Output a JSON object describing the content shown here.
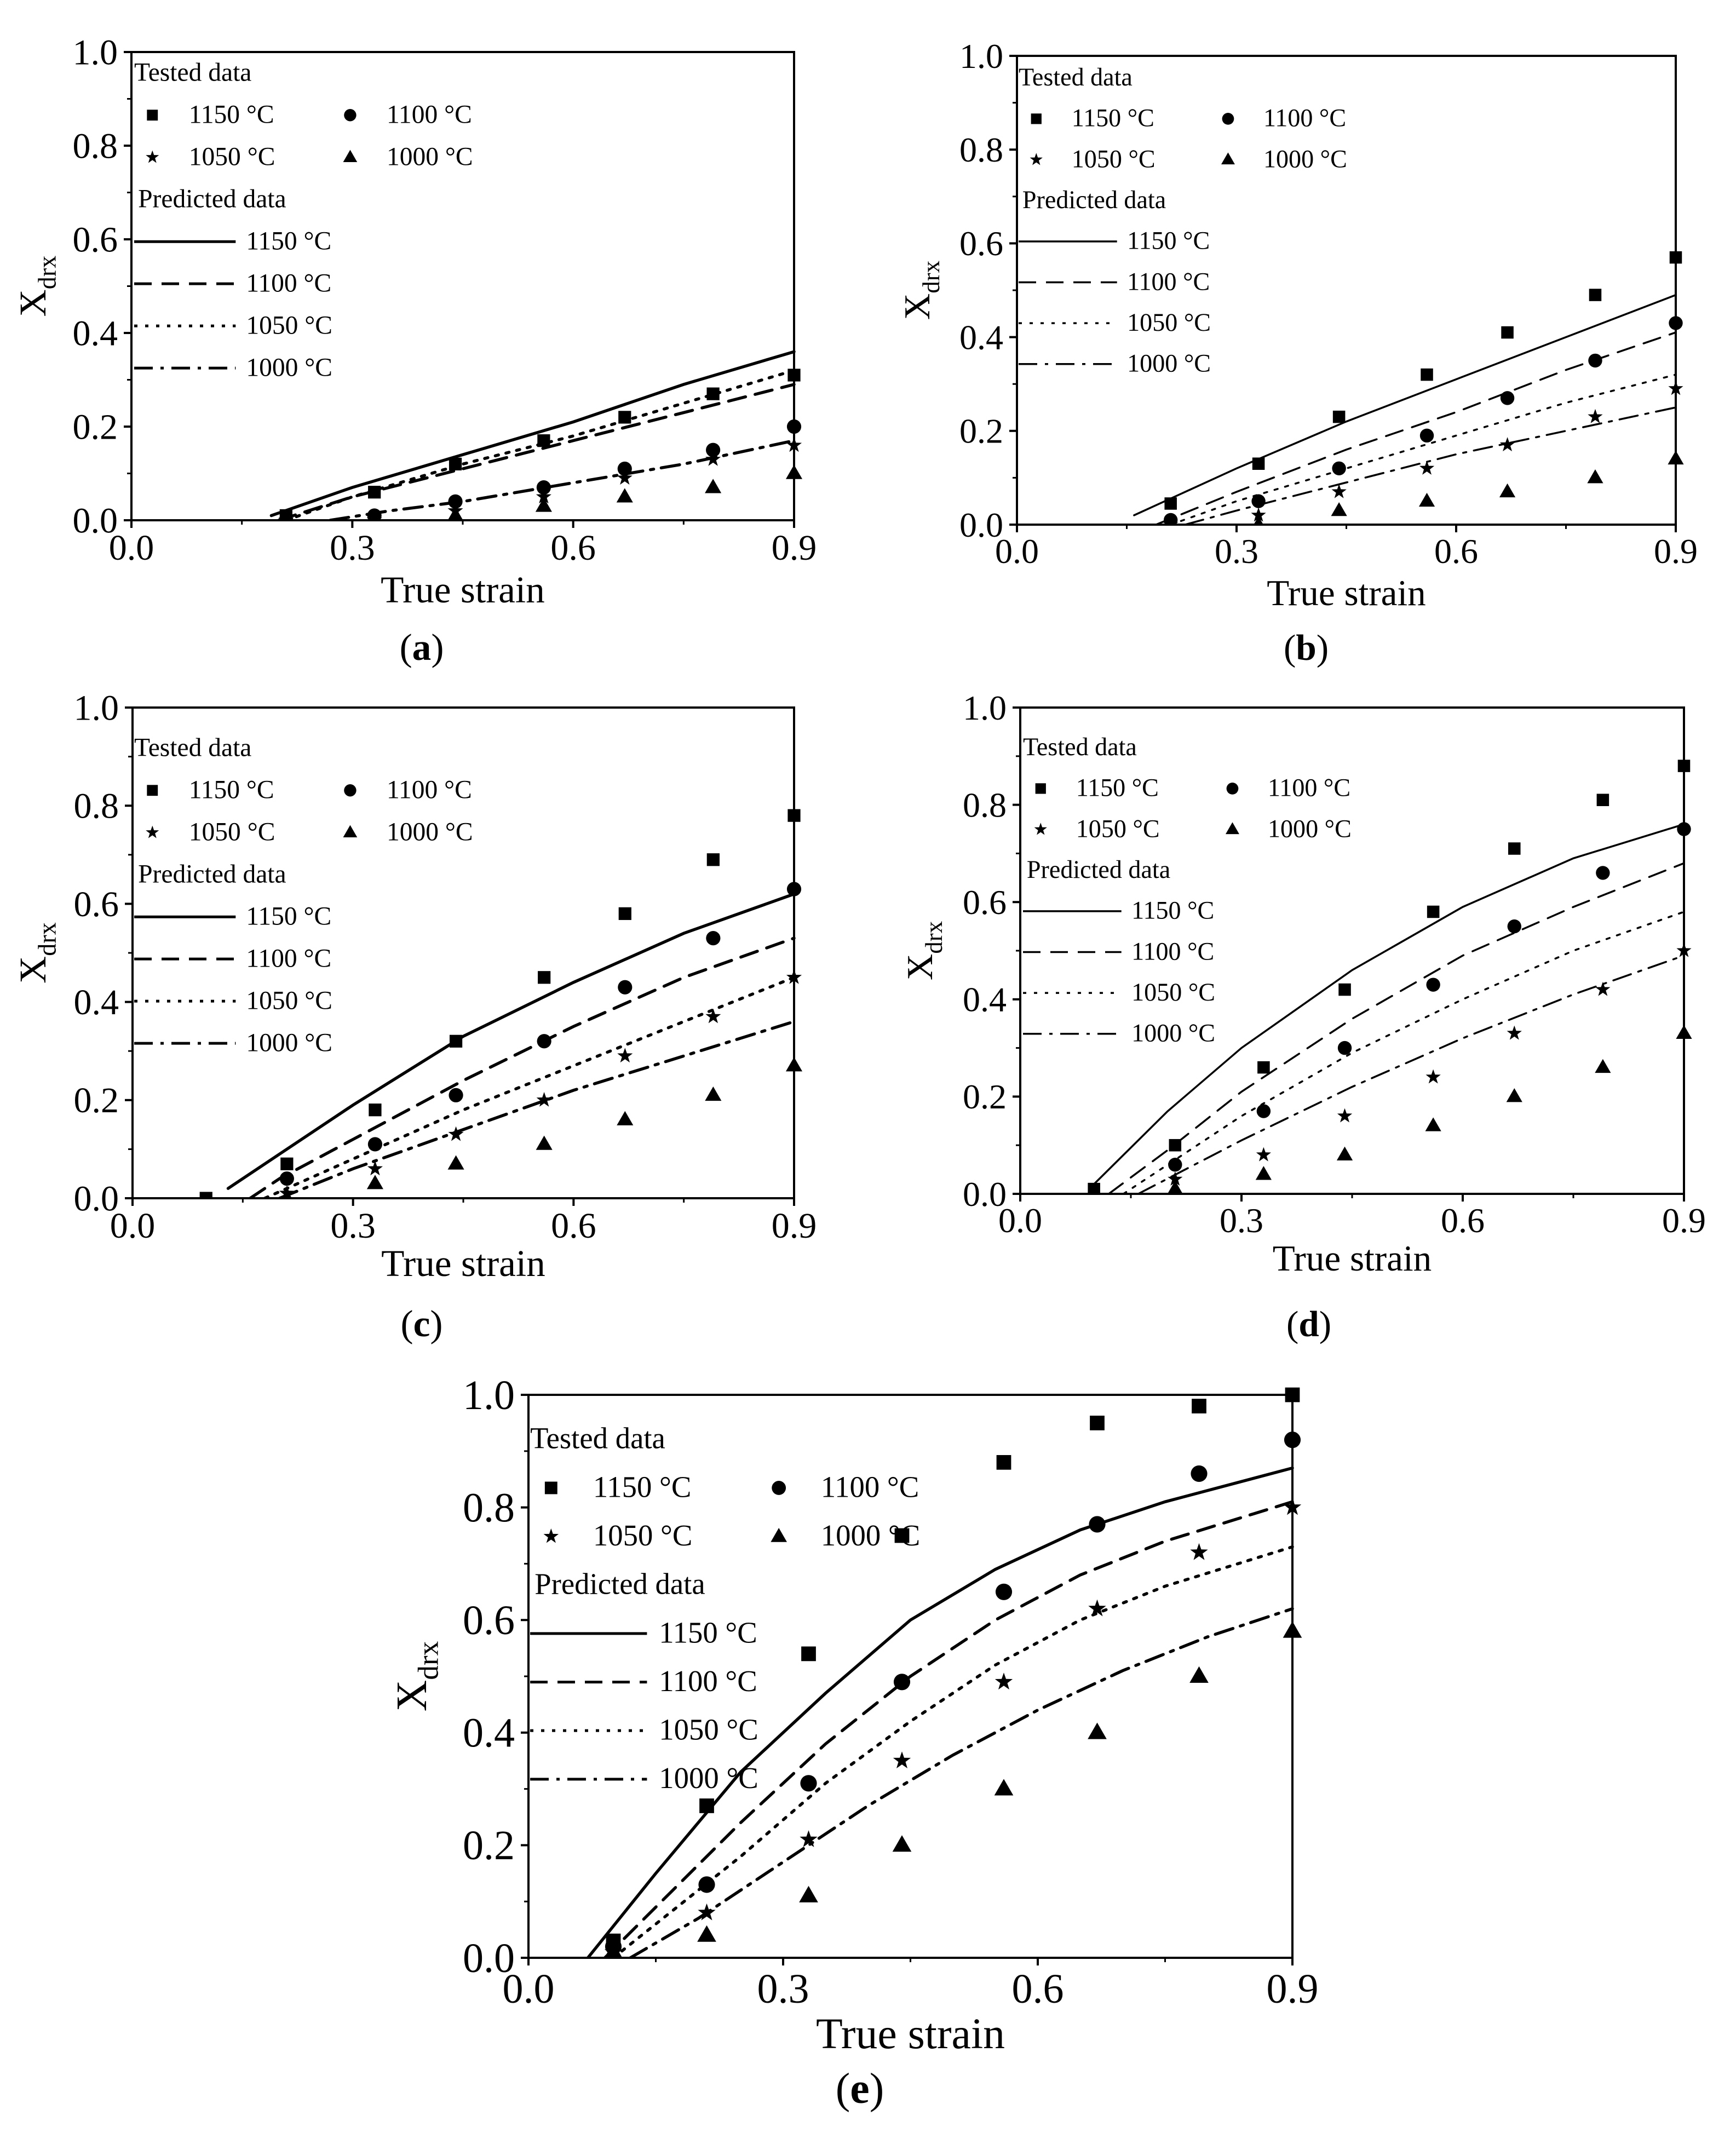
{
  "figure": {
    "x_tick_labels": [
      "0.0",
      "0.3",
      "0.6",
      "0.9"
    ],
    "y_tick_labels": [
      "0.0",
      "0.2",
      "0.4",
      "0.6",
      "0.8",
      "1.0"
    ]
  },
  "chart_data": [
    {
      "type": "scatter",
      "panel": "(a)",
      "panel_letter": "a",
      "xlabel": "True strain",
      "ylabel_main": "X",
      "ylabel_sub": "drx",
      "xlim": [
        0.0,
        0.9
      ],
      "ylim": [
        0.0,
        1.0
      ],
      "legend": {
        "tested_title": "Tested data",
        "predicted_title": "Predicted data",
        "entries": [
          "1150 °C",
          "1100 °C",
          "1050 °C",
          "1000 °C"
        ]
      },
      "tested": [
        {
          "name": "1150 °C",
          "marker": "square",
          "x": [
            0.21,
            0.33,
            0.44,
            0.56,
            0.67,
            0.79,
            0.9
          ],
          "y": [
            0.01,
            0.06,
            0.12,
            0.17,
            0.22,
            0.27,
            0.31
          ]
        },
        {
          "name": "1100 °C",
          "marker": "circle",
          "x": [
            0.21,
            0.33,
            0.44,
            0.56,
            0.67,
            0.79,
            0.9
          ],
          "y": [
            0.0,
            0.01,
            0.04,
            0.07,
            0.11,
            0.15,
            0.2
          ]
        },
        {
          "name": "1050 °C",
          "marker": "star",
          "x": [
            0.21,
            0.33,
            0.44,
            0.56,
            0.67,
            0.79,
            0.9
          ],
          "y": [
            0.0,
            0.0,
            0.02,
            0.05,
            0.09,
            0.13,
            0.16
          ]
        },
        {
          "name": "1000 °C",
          "marker": "triangle",
          "x": [
            0.21,
            0.33,
            0.44,
            0.56,
            0.67,
            0.79,
            0.9
          ],
          "y": [
            0.0,
            0.0,
            0.01,
            0.03,
            0.05,
            0.07,
            0.1
          ]
        }
      ],
      "predicted": [
        {
          "name": "1150 °C",
          "style": "solid",
          "x": [
            0.19,
            0.3,
            0.45,
            0.6,
            0.75,
            0.9
          ],
          "y": [
            0.01,
            0.07,
            0.14,
            0.21,
            0.29,
            0.36
          ]
        },
        {
          "name": "1100 °C",
          "style": "dash",
          "x": [
            0.2,
            0.3,
            0.45,
            0.6,
            0.75,
            0.9
          ],
          "y": [
            0.0,
            0.05,
            0.11,
            0.17,
            0.23,
            0.29
          ]
        },
        {
          "name": "1050 °C",
          "style": "dot",
          "x": [
            0.21,
            0.3,
            0.45,
            0.6,
            0.75,
            0.9
          ],
          "y": [
            0.0,
            0.05,
            0.12,
            0.18,
            0.25,
            0.32
          ]
        },
        {
          "name": "1000 °C",
          "style": "dashdot",
          "x": [
            0.27,
            0.35,
            0.45,
            0.6,
            0.75,
            0.9
          ],
          "y": [
            0.0,
            0.02,
            0.04,
            0.08,
            0.12,
            0.17
          ]
        }
      ]
    },
    {
      "type": "scatter",
      "panel": "(b)",
      "panel_letter": "b",
      "xlabel": "True strain",
      "ylabel_main": "X",
      "ylabel_sub": "drx",
      "xlim": [
        0.0,
        0.9
      ],
      "ylim": [
        0.0,
        1.0
      ],
      "legend": {
        "tested_title": "Tested data",
        "predicted_title": "Predicted data",
        "entries": [
          "1150 °C",
          "1100 °C",
          "1050 °C",
          "1000 °C"
        ]
      },
      "tested": [
        {
          "name": "1150 °C",
          "marker": "square",
          "x": [
            0.21,
            0.33,
            0.44,
            0.56,
            0.67,
            0.79,
            0.9
          ],
          "y": [
            0.045,
            0.13,
            0.23,
            0.32,
            0.41,
            0.49,
            0.57
          ]
        },
        {
          "name": "1100 °C",
          "marker": "circle",
          "x": [
            0.21,
            0.33,
            0.44,
            0.56,
            0.67,
            0.79,
            0.9
          ],
          "y": [
            0.01,
            0.05,
            0.12,
            0.19,
            0.27,
            0.35,
            0.43
          ]
        },
        {
          "name": "1050 °C",
          "marker": "star",
          "x": [
            0.21,
            0.33,
            0.44,
            0.56,
            0.67,
            0.79,
            0.9
          ],
          "y": [
            0.0,
            0.02,
            0.07,
            0.12,
            0.17,
            0.23,
            0.29
          ]
        },
        {
          "name": "1000 °C",
          "marker": "triangle",
          "x": [
            0.21,
            0.33,
            0.44,
            0.56,
            0.67,
            0.79,
            0.9
          ],
          "y": [
            0.0,
            0.0,
            0.03,
            0.05,
            0.07,
            0.1,
            0.14
          ]
        }
      ],
      "predicted": [
        {
          "name": "1150 °C",
          "style": "solid",
          "x": [
            0.16,
            0.3,
            0.45,
            0.6,
            0.75,
            0.9
          ],
          "y": [
            0.02,
            0.12,
            0.22,
            0.31,
            0.4,
            0.49
          ]
        },
        {
          "name": "1100 °C",
          "style": "dash",
          "x": [
            0.19,
            0.3,
            0.45,
            0.6,
            0.75,
            0.9
          ],
          "y": [
            0.0,
            0.07,
            0.16,
            0.24,
            0.33,
            0.41
          ]
        },
        {
          "name": "1050 °C",
          "style": "dot",
          "x": [
            0.21,
            0.3,
            0.45,
            0.6,
            0.75,
            0.9
          ],
          "y": [
            0.0,
            0.05,
            0.12,
            0.19,
            0.26,
            0.32
          ]
        },
        {
          "name": "1000 °C",
          "style": "dashdot",
          "x": [
            0.23,
            0.3,
            0.45,
            0.6,
            0.75,
            0.9
          ],
          "y": [
            0.0,
            0.03,
            0.09,
            0.15,
            0.2,
            0.25
          ]
        }
      ]
    },
    {
      "type": "scatter",
      "panel": "(c)",
      "panel_letter": "c",
      "xlabel": "True strain",
      "ylabel_main": "X",
      "ylabel_sub": "drx",
      "xlim": [
        0.0,
        0.9
      ],
      "ylim": [
        0.0,
        1.0
      ],
      "legend": {
        "tested_title": "Tested data",
        "predicted_title": "Predicted data",
        "entries": [
          "1150 °C",
          "1100 °C",
          "1050 °C",
          "1000 °C"
        ]
      },
      "tested": [
        {
          "name": "1150 °C",
          "marker": "square",
          "x": [
            0.1,
            0.21,
            0.33,
            0.44,
            0.56,
            0.67,
            0.79,
            0.9
          ],
          "y": [
            0.0,
            0.07,
            0.18,
            0.32,
            0.45,
            0.58,
            0.69,
            0.78
          ]
        },
        {
          "name": "1100 °C",
          "marker": "circle",
          "x": [
            0.21,
            0.33,
            0.44,
            0.56,
            0.67,
            0.79,
            0.9
          ],
          "y": [
            0.04,
            0.11,
            0.21,
            0.32,
            0.43,
            0.53,
            0.63
          ]
        },
        {
          "name": "1050 °C",
          "marker": "star",
          "x": [
            0.21,
            0.33,
            0.44,
            0.56,
            0.67,
            0.79,
            0.9
          ],
          "y": [
            0.01,
            0.06,
            0.13,
            0.2,
            0.29,
            0.37,
            0.45
          ]
        },
        {
          "name": "1000 °C",
          "marker": "triangle",
          "x": [
            0.21,
            0.33,
            0.44,
            0.56,
            0.67,
            0.79,
            0.9
          ],
          "y": [
            0.0,
            0.03,
            0.07,
            0.11,
            0.16,
            0.21,
            0.27
          ]
        }
      ],
      "predicted": [
        {
          "name": "1150 °C",
          "style": "solid",
          "x": [
            0.13,
            0.2,
            0.3,
            0.45,
            0.6,
            0.75,
            0.9
          ],
          "y": [
            0.02,
            0.09,
            0.19,
            0.33,
            0.44,
            0.54,
            0.62
          ]
        },
        {
          "name": "1100 °C",
          "style": "dash",
          "x": [
            0.16,
            0.2,
            0.3,
            0.45,
            0.6,
            0.75,
            0.9
          ],
          "y": [
            0.0,
            0.04,
            0.12,
            0.24,
            0.35,
            0.45,
            0.53
          ]
        },
        {
          "name": "1050 °C",
          "style": "dot",
          "x": [
            0.18,
            0.3,
            0.45,
            0.6,
            0.75,
            0.9
          ],
          "y": [
            0.0,
            0.08,
            0.18,
            0.27,
            0.36,
            0.45
          ]
        },
        {
          "name": "1000 °C",
          "style": "dashdot",
          "x": [
            0.2,
            0.3,
            0.45,
            0.6,
            0.75,
            0.9
          ],
          "y": [
            0.0,
            0.06,
            0.14,
            0.22,
            0.29,
            0.36
          ]
        }
      ]
    },
    {
      "type": "scatter",
      "panel": "(d)",
      "panel_letter": "d",
      "xlabel": "True strain",
      "ylabel_main": "X",
      "ylabel_sub": "drx",
      "xlim": [
        0.0,
        0.9
      ],
      "ylim": [
        0.0,
        1.0
      ],
      "legend": {
        "tested_title": "Tested data",
        "predicted_title": "Predicted data",
        "entries": [
          "1150 °C",
          "1100 °C",
          "1050 °C",
          "1000 °C"
        ]
      },
      "tested": [
        {
          "name": "1150 °C",
          "marker": "square",
          "x": [
            0.1,
            0.21,
            0.33,
            0.44,
            0.56,
            0.67,
            0.79,
            0.9
          ],
          "y": [
            0.01,
            0.1,
            0.26,
            0.42,
            0.58,
            0.71,
            0.81,
            0.88
          ]
        },
        {
          "name": "1100 °C",
          "marker": "circle",
          "x": [
            0.21,
            0.33,
            0.44,
            0.56,
            0.67,
            0.79,
            0.9
          ],
          "y": [
            0.06,
            0.17,
            0.3,
            0.43,
            0.55,
            0.66,
            0.75
          ]
        },
        {
          "name": "1050 °C",
          "marker": "star",
          "x": [
            0.21,
            0.33,
            0.44,
            0.56,
            0.67,
            0.79,
            0.9
          ],
          "y": [
            0.03,
            0.08,
            0.16,
            0.24,
            0.33,
            0.42,
            0.5
          ]
        },
        {
          "name": "1000 °C",
          "marker": "triangle",
          "x": [
            0.21,
            0.33,
            0.44,
            0.56,
            0.67,
            0.79,
            0.9
          ],
          "y": [
            0.01,
            0.04,
            0.08,
            0.14,
            0.2,
            0.26,
            0.33
          ]
        }
      ],
      "predicted": [
        {
          "name": "1150 °C",
          "style": "solid",
          "x": [
            0.1,
            0.2,
            0.3,
            0.45,
            0.6,
            0.75,
            0.9
          ],
          "y": [
            0.02,
            0.17,
            0.3,
            0.46,
            0.59,
            0.69,
            0.76
          ]
        },
        {
          "name": "1100 °C",
          "style": "dash",
          "x": [
            0.12,
            0.2,
            0.3,
            0.45,
            0.6,
            0.75,
            0.9
          ],
          "y": [
            0.0,
            0.09,
            0.21,
            0.36,
            0.49,
            0.59,
            0.68
          ]
        },
        {
          "name": "1050 °C",
          "style": "dot",
          "x": [
            0.14,
            0.2,
            0.3,
            0.45,
            0.6,
            0.75,
            0.9
          ],
          "y": [
            0.0,
            0.06,
            0.16,
            0.29,
            0.4,
            0.5,
            0.58
          ]
        },
        {
          "name": "1000 °C",
          "style": "dashdot",
          "x": [
            0.16,
            0.3,
            0.45,
            0.6,
            0.75,
            0.9
          ],
          "y": [
            0.0,
            0.11,
            0.22,
            0.32,
            0.41,
            0.49
          ]
        }
      ]
    },
    {
      "type": "scatter",
      "panel": "(e)",
      "panel_letter": "e",
      "xlabel": "True strain",
      "ylabel_main": "X",
      "ylabel_sub": "drx",
      "xlim": [
        0.0,
        0.9
      ],
      "ylim": [
        0.0,
        1.0
      ],
      "legend": {
        "tested_title": "Tested data",
        "predicted_title": "Predicted data",
        "entries": [
          "1150 °C",
          "1100 °C",
          "1050 °C",
          "1000 °C"
        ]
      },
      "tested": [
        {
          "name": "1150 °C",
          "marker": "square",
          "x": [
            0.1,
            0.21,
            0.33,
            0.44,
            0.56,
            0.67,
            0.79,
            0.9
          ],
          "y": [
            0.03,
            0.27,
            0.54,
            0.75,
            0.88,
            0.95,
            0.98,
            1.0
          ]
        },
        {
          "name": "1100 °C",
          "marker": "circle",
          "x": [
            0.1,
            0.21,
            0.33,
            0.44,
            0.56,
            0.67,
            0.79,
            0.9
          ],
          "y": [
            0.02,
            0.13,
            0.31,
            0.49,
            0.65,
            0.77,
            0.86,
            0.92
          ]
        },
        {
          "name": "1050 °C",
          "marker": "star",
          "x": [
            0.1,
            0.21,
            0.33,
            0.44,
            0.56,
            0.67,
            0.79,
            0.9
          ],
          "y": [
            0.01,
            0.08,
            0.21,
            0.35,
            0.49,
            0.62,
            0.72,
            0.8
          ]
        },
        {
          "name": "1000 °C",
          "marker": "triangle",
          "x": [
            0.1,
            0.21,
            0.33,
            0.44,
            0.56,
            0.67,
            0.79,
            0.9
          ],
          "y": [
            0.01,
            0.04,
            0.11,
            0.2,
            0.3,
            0.4,
            0.5,
            0.58
          ]
        }
      ],
      "predicted": [
        {
          "name": "1150 °C",
          "style": "solid",
          "x": [
            0.07,
            0.15,
            0.25,
            0.35,
            0.45,
            0.55,
            0.65,
            0.75,
            0.9
          ],
          "y": [
            0.0,
            0.15,
            0.33,
            0.47,
            0.6,
            0.69,
            0.76,
            0.81,
            0.87
          ]
        },
        {
          "name": "1100 °C",
          "style": "dash",
          "x": [
            0.09,
            0.15,
            0.25,
            0.35,
            0.45,
            0.55,
            0.65,
            0.75,
            0.9
          ],
          "y": [
            0.0,
            0.09,
            0.24,
            0.38,
            0.5,
            0.6,
            0.68,
            0.74,
            0.81
          ]
        },
        {
          "name": "1050 °C",
          "style": "dot",
          "x": [
            0.1,
            0.15,
            0.25,
            0.35,
            0.45,
            0.55,
            0.65,
            0.75,
            0.9
          ],
          "y": [
            0.0,
            0.06,
            0.18,
            0.31,
            0.42,
            0.52,
            0.6,
            0.66,
            0.73
          ]
        },
        {
          "name": "1000 °C",
          "style": "dashdot",
          "x": [
            0.12,
            0.2,
            0.3,
            0.4,
            0.5,
            0.6,
            0.7,
            0.8,
            0.9
          ],
          "y": [
            0.0,
            0.07,
            0.17,
            0.27,
            0.36,
            0.44,
            0.51,
            0.57,
            0.62
          ]
        }
      ]
    }
  ]
}
